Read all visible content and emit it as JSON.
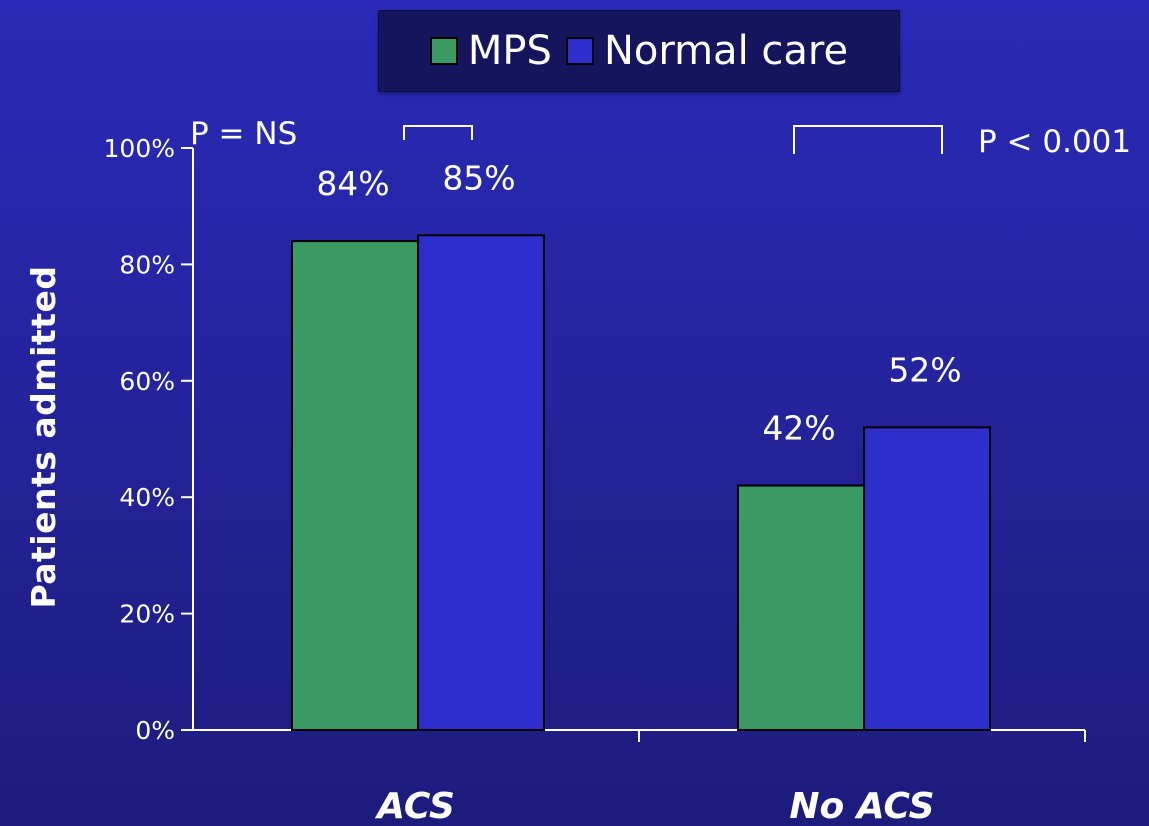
{
  "legend": [
    {
      "label": "MPS",
      "color": "#3a9a63"
    },
    {
      "label": "Normal care",
      "color": "#2e2ecc"
    }
  ],
  "annotations": {
    "left": "P = NS",
    "right": "P < 0.001"
  },
  "chart_data": {
    "type": "bar",
    "title": "",
    "xlabel": "",
    "ylabel": "Patients admitted",
    "categories": [
      "ACS",
      "No ACS"
    ],
    "series": [
      {
        "name": "MPS",
        "color": "#3a9a63",
        "values": [
          84,
          42
        ],
        "labels": [
          "84%",
          "42%"
        ]
      },
      {
        "name": "Normal care",
        "color": "#2e2ecc",
        "values": [
          85,
          52
        ],
        "labels": [
          "85%",
          "52%"
        ]
      }
    ],
    "ylim": [
      0,
      100
    ],
    "yticks": [
      0,
      20,
      40,
      60,
      80,
      100
    ],
    "ytick_labels": [
      "0%",
      "20%",
      "40%",
      "60%",
      "80%",
      "100%"
    ],
    "grid": false,
    "legend_position": "top"
  }
}
